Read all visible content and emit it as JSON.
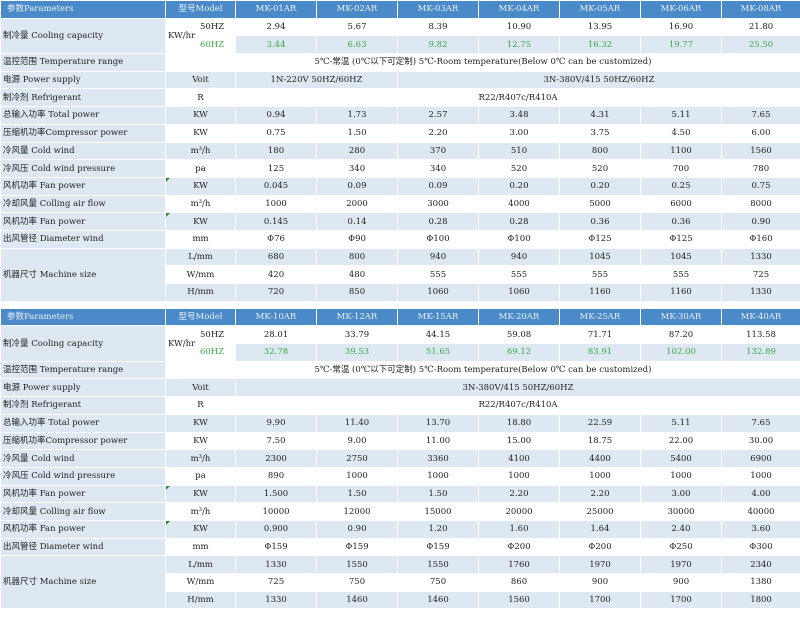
{
  "header_param": "参数Parameters",
  "header_model": "型号Model",
  "tables": [
    {
      "models": [
        "MK-01AR",
        "MK-02AR",
        "MK-03AR",
        "MK-04AR",
        "MK-05AR",
        "MK-06AR",
        "MK-08AR"
      ],
      "cooling_label": "制冷量 Cooling capacity",
      "cooling_unit": "KW/hr",
      "cooling_50_label": "50HZ",
      "cooling_60_label": "60HZ",
      "cooling_50": [
        "2.94",
        "5.67",
        "8.39",
        "10.90",
        "13.95",
        "16.90",
        "21.80"
      ],
      "cooling_60": [
        "3.44",
        "6.63",
        "9.82",
        "12.75",
        "16.32",
        "19.77",
        "25.50"
      ],
      "temp_label": "温控范围 Temperature range",
      "temp_value": "5℃-常温 (0℃以下可定制) 5℃-Room temperature(Below 0℃ can be customized)",
      "power_label": "电源 Power supply",
      "power_unit": "Voit",
      "power_a": "1N-220V 50HZ/60HZ",
      "power_b": "3N-380V/415 50HZ/60HZ",
      "refr_label": "制冷剂 Refrigerant",
      "refr_unit": "R",
      "refr_value": "R22/R407c/R410A",
      "rows": [
        {
          "label": "总输入功率 Total power",
          "unit": "KW",
          "values": [
            "0.94",
            "1.73",
            "2.57",
            "3.48",
            "4.31",
            "5.11",
            "7.65"
          ]
        },
        {
          "label": "压缩机功率Compressor power",
          "unit": "KW",
          "values": [
            "0.75",
            "1.50",
            "2.20",
            "3.00",
            "3.75",
            "4.50",
            "6.00"
          ]
        },
        {
          "label": "冷风量 Cold wind",
          "unit": "m³/h",
          "values": [
            "180",
            "280",
            "370",
            "510",
            "800",
            "1100",
            "1560"
          ]
        },
        {
          "label": "冷风压 Cold wind pressure",
          "unit": "pa",
          "values": [
            "125",
            "340",
            "340",
            "520",
            "520",
            "700",
            "780"
          ]
        },
        {
          "label": "风机功率 Fan power",
          "unit": "KW",
          "values": [
            "0.045",
            "0.09",
            "0.09",
            "0.20",
            "0.20",
            "0.25",
            "0.75"
          ]
        },
        {
          "label": "冷却风量 Colling air flow",
          "unit": "m³/h",
          "values": [
            "1000",
            "2000",
            "3000",
            "4000",
            "5000",
            "6000",
            "8000"
          ]
        },
        {
          "label": "风机功率 Fan power",
          "unit": "KW",
          "values": [
            "0.145",
            "0.14",
            "0.28",
            "0.28",
            "0.36",
            "0.36",
            "0.90"
          ]
        },
        {
          "label": "出风管径 Diameter wind",
          "unit": "mm",
          "values": [
            "Φ76",
            "Φ90",
            "Φ100",
            "Φ100",
            "Φ125",
            "Φ125",
            "Φ160"
          ]
        }
      ],
      "size_label": "机器尺寸 Machine size",
      "size_rows": [
        {
          "unit": "L/mm",
          "values": [
            "680",
            "800",
            "940",
            "940",
            "1045",
            "1045",
            "1330"
          ]
        },
        {
          "unit": "W/mm",
          "values": [
            "420",
            "480",
            "555",
            "555",
            "555",
            "555",
            "725"
          ]
        },
        {
          "unit": "H/mm",
          "values": [
            "720",
            "850",
            "1060",
            "1060",
            "1160",
            "1160",
            "1330"
          ]
        }
      ]
    },
    {
      "models": [
        "MK-10AR",
        "MK-12AR",
        "MK-15AR",
        "MK-20AR",
        "MK-25AR",
        "MK-30AR",
        "MK-40AR"
      ],
      "cooling_label": "制冷量 Cooling capacity",
      "cooling_unit": "KW/hr",
      "cooling_50_label": "50HZ",
      "cooling_60_label": "60HZ",
      "cooling_50": [
        "28.01",
        "33.79",
        "44.15",
        "59.08",
        "71.71",
        "87.20",
        "113.58"
      ],
      "cooling_60": [
        "32.78",
        "39.53",
        "51.65",
        "69.12",
        "83.91",
        "102.00",
        "132.89"
      ],
      "temp_label": "温控范围 Temperature range",
      "temp_value": "5℃-常温 (0℃以下可定制) 5℃-Room temperature(Below 0℃ can be customized)",
      "power_label": "电源 Power supply",
      "power_unit": "Voit",
      "power_value": "3N-380V/415 50HZ/60HZ",
      "refr_label": "制冷剂 Refrigerant",
      "refr_unit": "R",
      "refr_value": "R22/R407c/R410A",
      "rows": [
        {
          "label": "总输入功率 Total power",
          "unit": "KW",
          "values": [
            "9.90",
            "11.40",
            "13.70",
            "18.80",
            "22.59",
            "5.11",
            "7.65"
          ]
        },
        {
          "label": "压缩机功率Compressor power",
          "unit": "KW",
          "values": [
            "7.50",
            "9.00",
            "11.00",
            "15.00",
            "18.75",
            "22.00",
            "30.00"
          ]
        },
        {
          "label": "冷风量 Cold wind",
          "unit": "m³/h",
          "values": [
            "2300",
            "2750",
            "3360",
            "4100",
            "4400",
            "5400",
            "6900"
          ]
        },
        {
          "label": "冷风压 Cold wind pressure",
          "unit": "pa",
          "values": [
            "890",
            "1000",
            "1000",
            "1000",
            "1000",
            "1000",
            "1000"
          ]
        },
        {
          "label": "风机功率 Fan power",
          "unit": "KW",
          "values": [
            "1.500",
            "1.50",
            "1.50",
            "2.20",
            "2.20",
            "3.00",
            "4.00"
          ]
        },
        {
          "label": "冷却风量 Colling air flow",
          "unit": "m³/h",
          "values": [
            "10000",
            "12000",
            "15000",
            "20000",
            "25000",
            "30000",
            "40000"
          ]
        },
        {
          "label": "风机功率 Fan power",
          "unit": "KW",
          "values": [
            "0.900",
            "0.90",
            "1.20",
            "1.60",
            "1.64",
            "2.40",
            "3.60"
          ]
        },
        {
          "label": "出风管径 Diameter wind",
          "unit": "mm",
          "values": [
            "Φ159",
            "Φ159",
            "Φ159",
            "Φ200",
            "Φ200",
            "Φ250",
            "Φ300"
          ]
        }
      ],
      "size_label": "机器尺寸 Machine size",
      "size_rows": [
        {
          "unit": "L/mm",
          "values": [
            "1330",
            "1550",
            "1550",
            "1760",
            "1970",
            "1970",
            "2340"
          ]
        },
        {
          "unit": "W/mm",
          "values": [
            "725",
            "750",
            "750",
            "860",
            "900",
            "900",
            "1380"
          ]
        },
        {
          "unit": "H/mm",
          "values": [
            "1330",
            "1460",
            "1460",
            "1560",
            "1700",
            "1700",
            "1800"
          ]
        }
      ]
    }
  ]
}
